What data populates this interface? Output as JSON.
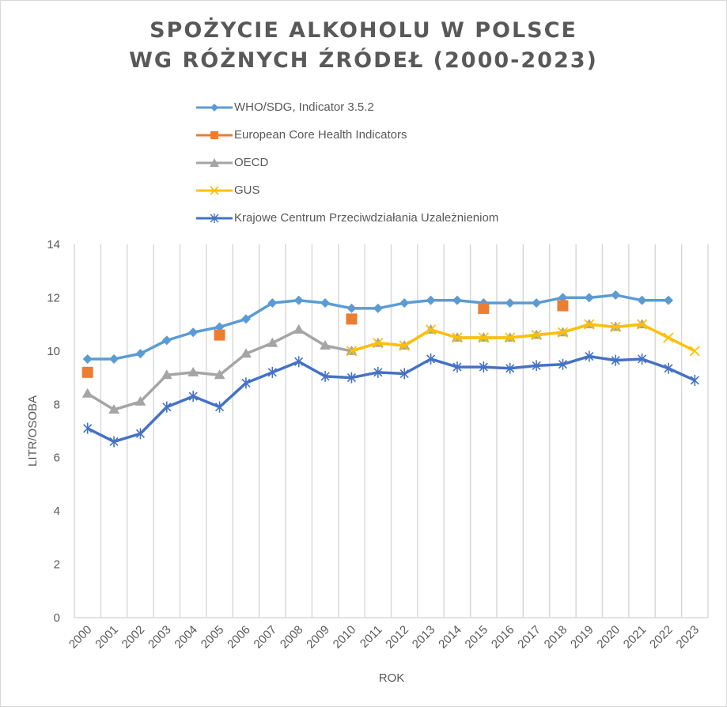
{
  "chart_data": {
    "type": "line",
    "title": [
      "SPOŻYCIE  ALKOHOLU  W POLSCE",
      "WG RÓŻNYCH  ŹRÓDEŁ (2000-2023)"
    ],
    "xlabel": "ROK",
    "ylabel": "LITR/OSOBA",
    "ylim": [
      0,
      14
    ],
    "yticks": [
      "0",
      "2",
      "4",
      "6",
      "8",
      "10",
      "12",
      "14"
    ],
    "grid": "vertical",
    "legend_position": "top",
    "categories": [
      "2000",
      "2001",
      "2002",
      "2003",
      "2004",
      "2005",
      "2006",
      "2007",
      "2008",
      "2009",
      "2010",
      "2011",
      "2012",
      "2013",
      "2014",
      "2015",
      "2016",
      "2017",
      "2018",
      "2019",
      "2020",
      "2021",
      "2022",
      "2023"
    ],
    "series": [
      {
        "name": "WHO/SDG, Indicator 3.5.2",
        "color": "#5b9bd5",
        "marker": "diamond",
        "line": true,
        "values": [
          9.7,
          9.7,
          9.9,
          10.4,
          10.7,
          10.9,
          11.2,
          11.8,
          11.9,
          11.8,
          11.6,
          11.6,
          11.8,
          11.9,
          11.9,
          11.8,
          11.8,
          11.8,
          12.0,
          12.0,
          12.1,
          11.9,
          11.9,
          null
        ]
      },
      {
        "name": "European Core Health Indicators",
        "color": "#ed7d31",
        "marker": "square",
        "line": false,
        "values": [
          9.2,
          null,
          null,
          null,
          null,
          10.6,
          null,
          null,
          null,
          null,
          11.2,
          null,
          null,
          null,
          null,
          11.6,
          null,
          null,
          11.7,
          null,
          null,
          null,
          null,
          null
        ]
      },
      {
        "name": "OECD",
        "color": "#a5a5a5",
        "marker": "triangle",
        "line": true,
        "values": [
          8.4,
          7.8,
          8.1,
          9.1,
          9.2,
          9.1,
          9.9,
          10.3,
          10.8,
          10.2,
          10.0,
          10.3,
          10.2,
          10.8,
          10.5,
          10.5,
          10.5,
          10.6,
          10.7,
          11.0,
          10.9,
          11.0,
          null,
          null
        ]
      },
      {
        "name": "GUS",
        "color": "#ffc000",
        "marker": "x",
        "line": true,
        "values": [
          null,
          null,
          null,
          null,
          null,
          null,
          null,
          null,
          null,
          null,
          10.0,
          10.3,
          10.2,
          10.8,
          10.5,
          10.5,
          10.5,
          10.6,
          10.7,
          11.0,
          10.9,
          11.0,
          10.5,
          10.0
        ]
      },
      {
        "name": "Krajowe Centrum Przeciwdziałania Uzależnieniom",
        "color": "#4472c4",
        "marker": "star",
        "line": true,
        "values": [
          7.1,
          6.6,
          6.9,
          7.9,
          8.3,
          7.9,
          8.8,
          9.2,
          9.6,
          9.05,
          9.0,
          9.2,
          9.15,
          9.7,
          9.4,
          9.4,
          9.35,
          9.45,
          9.5,
          9.8,
          9.65,
          9.7,
          9.35,
          8.9
        ]
      }
    ]
  }
}
